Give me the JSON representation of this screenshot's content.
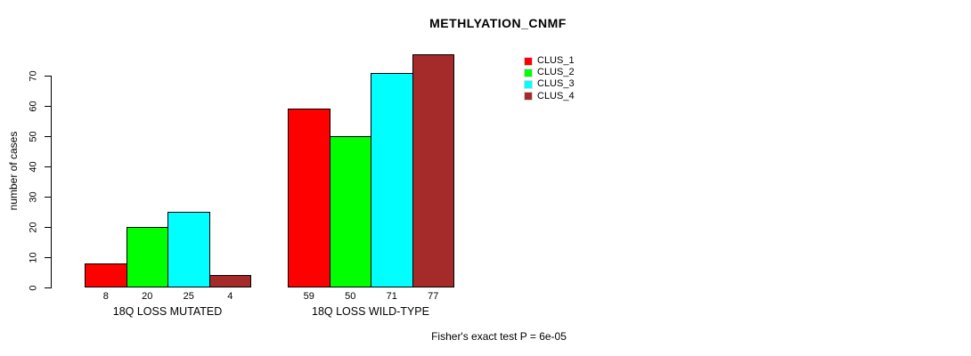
{
  "chart_data": {
    "type": "bar",
    "title": "METHLYATION_CNMF",
    "xlabel": "",
    "ylabel": "number of cases",
    "ylim": [
      0,
      77
    ],
    "yticks": [
      0,
      10,
      20,
      30,
      40,
      50,
      60,
      70
    ],
    "grid": false,
    "legend_position": "top-right",
    "categories": [
      "18Q LOSS MUTATED",
      "18Q LOSS WILD-TYPE"
    ],
    "series": [
      {
        "name": "CLUS_1",
        "color": "#ff0000"
      },
      {
        "name": "CLUS_2",
        "color": "#00ff00"
      },
      {
        "name": "CLUS_3",
        "color": "#00ffff"
      },
      {
        "name": "CLUS_4",
        "color": "#a52a2a"
      }
    ],
    "groups": [
      {
        "label": "18Q LOSS MUTATED",
        "values": [
          8,
          20,
          25,
          4
        ]
      },
      {
        "label": "18Q LOSS WILD-TYPE",
        "values": [
          59,
          50,
          71,
          77
        ]
      }
    ],
    "bar_value_labels": [
      8,
      20,
      25,
      4,
      59,
      50,
      71,
      77
    ],
    "annotation": "Fisher's exact test P = 6e-05",
    "axis_color": "#000000",
    "background_color": "#ffffff"
  }
}
